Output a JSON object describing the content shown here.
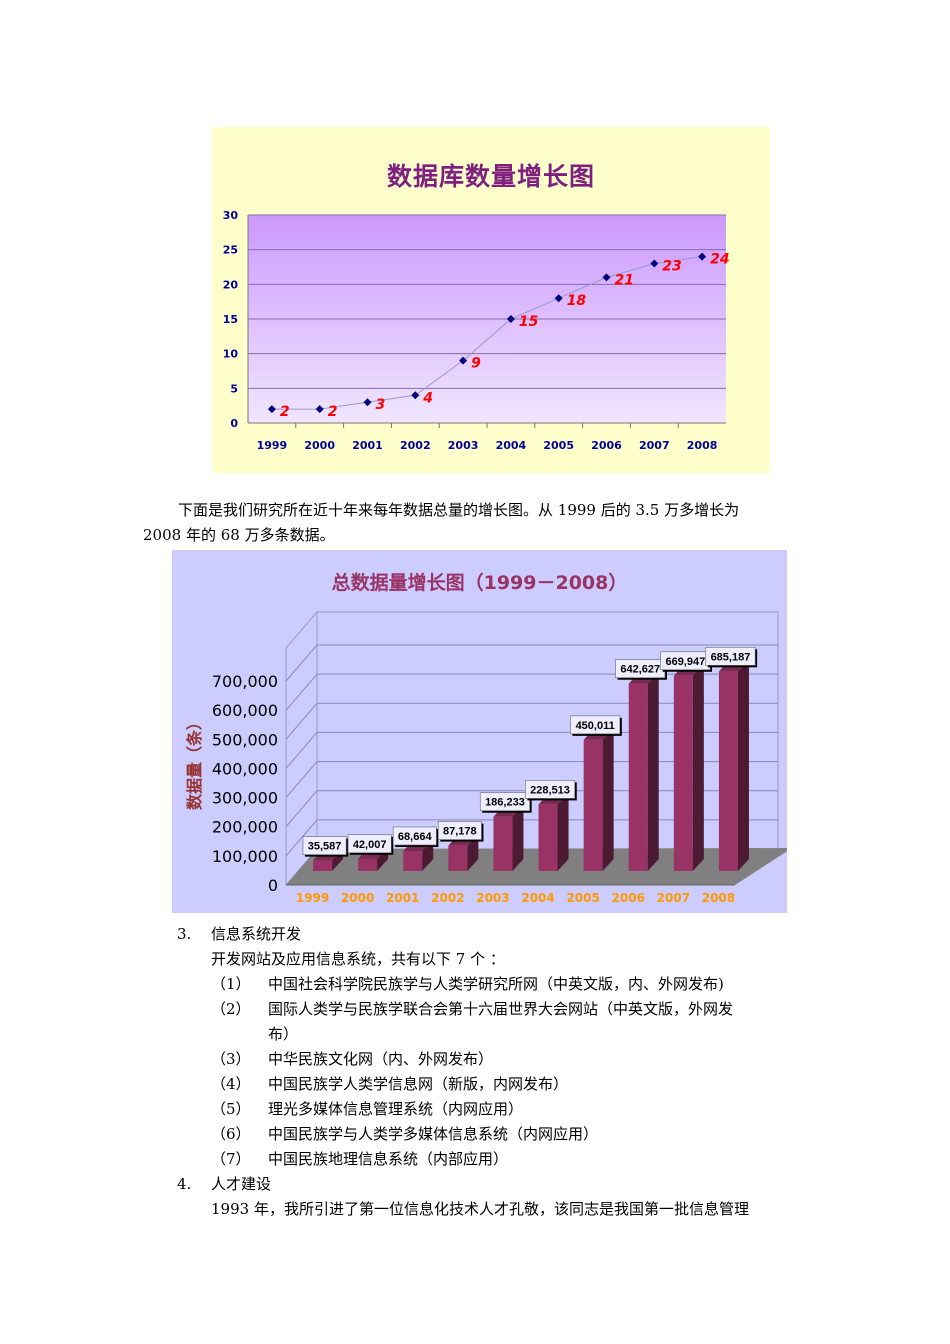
{
  "chart_data": [
    {
      "type": "line",
      "title": "数据库数量增长图",
      "categories": [
        "1999",
        "2000",
        "2001",
        "2002",
        "2003",
        "2004",
        "2005",
        "2006",
        "2007",
        "2008"
      ],
      "values": [
        2,
        2,
        3,
        4,
        9,
        15,
        18,
        21,
        23,
        24
      ],
      "data_labels": [
        "2",
        "2",
        "3",
        "4",
        "9",
        "15",
        "18",
        "21",
        "23",
        "24"
      ],
      "xlabel": "",
      "ylabel": "",
      "ylim": [
        0,
        30
      ],
      "yticks": [
        "0",
        "5",
        "10",
        "15",
        "20",
        "25",
        "30"
      ],
      "grid": true,
      "legend": "none",
      "colors": {
        "background": "#ffffcc",
        "plot_top": "#cc99ff",
        "plot_bottom": "#eee0ff",
        "marker": "#000080",
        "line": "#9999cc",
        "label": "#ff0000",
        "title": "#7f1f7f",
        "axis_text": "#000099"
      }
    },
    {
      "type": "bar",
      "title": "总数据量增长图（1999－2008）",
      "categories": [
        "1999",
        "2000",
        "2001",
        "2002",
        "2003",
        "2004",
        "2005",
        "2006",
        "2007",
        "2008"
      ],
      "values": [
        35587,
        42007,
        68664,
        87178,
        186233,
        228513,
        450011,
        642627,
        669947,
        685187
      ],
      "data_labels": [
        "35,587",
        "42,007",
        "68,664",
        "87,178",
        "186,233",
        "228,513",
        "450,011",
        "642,627",
        "669,947",
        "685,187"
      ],
      "xlabel": "",
      "ylabel": "数据量（条）",
      "ylim": [
        0,
        700000
      ],
      "yticks": [
        "0",
        "100,000",
        "200,000",
        "300,000",
        "400,000",
        "500,000",
        "600,000",
        "700,000"
      ],
      "grid": true,
      "legend": "none",
      "style": "3d-column",
      "colors": {
        "background": "#ccccff",
        "bar_front": "#993366",
        "bar_side": "#4d1a33",
        "floor": "#808080",
        "title": "#993366",
        "ylabel": "#993333",
        "xtick": "#ff9900"
      }
    }
  ],
  "document": {
    "paragraph1_line1": "下面是我们研究所在近十年来每年数据总量的增长图。从 1999 后的 3.5 万多增长为",
    "paragraph1_line2": "2008 年的 68 万多条数据。",
    "section3": {
      "number": "3.",
      "heading": "信息系统开发",
      "intro": "开发网站及应用信息系统，共有以下 7 个 ："
    },
    "systems": [
      {
        "num": "（1）",
        "text": "中国社会科学院民族学与人类学研究所网（中英文版，内、外网发布)"
      },
      {
        "num": "（2）",
        "text": "国际人类学与民族学联合会第十六届世界大会网站（中英文版，外网发",
        "text_cont": "布）"
      },
      {
        "num": "（3）",
        "text": "中华民族文化网（内、外网发布）"
      },
      {
        "num": "（4）",
        "text": "中国民族学人类学信息网（新版，内网发布）"
      },
      {
        "num": "（5）",
        "text": "理光多媒体信息管理系统（内网应用）"
      },
      {
        "num": "（6）",
        "text": "中国民族学与人类学多媒体信息系统（内网应用）"
      },
      {
        "num": "（7）",
        "text": "中国民族地理信息系统（内部应用）"
      }
    ],
    "section4": {
      "number": "4.",
      "heading": "人才建设",
      "text": "1993 年，我所引进了第一位信息化技术人才孔敬，该同志是我国第一批信息管理"
    }
  }
}
